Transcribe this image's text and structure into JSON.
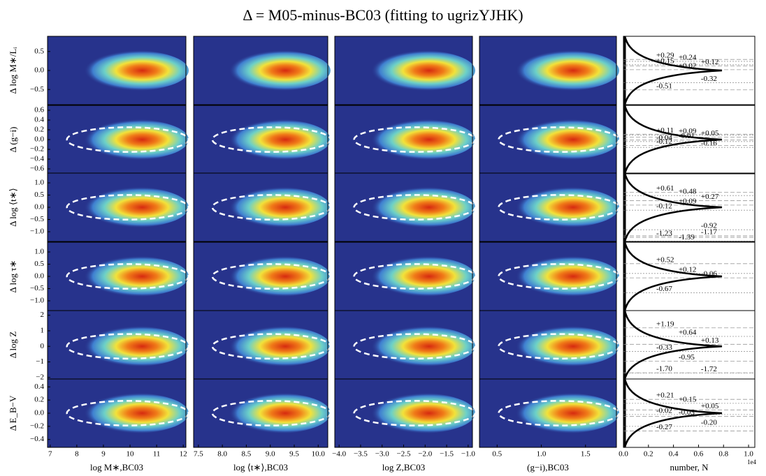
{
  "title": "Δ = M05-minus-BC03 (fitting to ugrizYJHK)",
  "columns": [
    {
      "xlabel": "log M∗,BC03",
      "xlim": [
        6.9,
        12.1
      ],
      "xticks": [
        7,
        8,
        9,
        10,
        11,
        12
      ]
    },
    {
      "xlabel": "log ⟨t∗⟩,BC03",
      "xlim": [
        7.4,
        10.2
      ],
      "xticks": [
        7.5,
        {
          "value": 8,
          "label": "8.0"
        },
        8.5,
        {
          "value": 9,
          "label": "9.0"
        },
        9.5,
        {
          "value": 10,
          "label": "10.0"
        }
      ]
    },
    {
      "xlabel": "log Z,BC03",
      "xlim": [
        -4.1,
        -0.9
      ],
      "xticks": [
        {
          "value": -4,
          "label": "−4.0"
        },
        {
          "value": -3.5,
          "label": "−3.5"
        },
        {
          "value": -3,
          "label": "−3.0"
        },
        {
          "value": -2.5,
          "label": "−2.5"
        },
        {
          "value": -2,
          "label": "−2.0"
        },
        {
          "value": -1.5,
          "label": "−1.5"
        },
        {
          "value": -1,
          "label": "−1.0"
        }
      ]
    },
    {
      "xlabel": "(g−i),BC03",
      "xlim": [
        0.3,
        1.85
      ],
      "xticks": [
        0.5,
        {
          "value": 1,
          "label": "1.0"
        },
        1.5
      ]
    },
    {
      "xlabel": "number, N",
      "xlim": [
        0,
        1.05
      ],
      "exponent": "1e4",
      "xticks": [
        {
          "value": 0,
          "label": "0.0"
        },
        0.2,
        0.4,
        0.6,
        0.8,
        {
          "value": 1,
          "label": "1.0"
        }
      ]
    }
  ],
  "rows": [
    {
      "ylabel": "Δ log M∗/Lᵢ",
      "ylim": [
        -0.9,
        0.9
      ],
      "yticks": [
        {
          "value": -0.5,
          "label": "−0.5"
        },
        {
          "value": 0,
          "label": "0.0"
        },
        0.5
      ],
      "annotations": [
        {
          "value": 0.29,
          "label": "+0.29"
        },
        {
          "value": 0.24,
          "label": "+0.24"
        },
        {
          "value": 0.12,
          "label": "+0.12"
        },
        {
          "value": 0.15,
          "label": "+0.15"
        },
        {
          "value": 0.02,
          "label": "+0.02"
        },
        {
          "value": -0.32,
          "label": "-0.32"
        },
        {
          "value": -0.51,
          "label": "-0.51"
        }
      ]
    },
    {
      "ylabel": "Δ (g−i)",
      "ylim": [
        -0.7,
        0.7
      ],
      "yticks": [
        {
          "value": -0.6,
          "label": "−0.6"
        },
        {
          "value": -0.4,
          "label": "−0.4"
        },
        {
          "value": -0.2,
          "label": "−0.2"
        },
        {
          "value": 0,
          "label": "0.0"
        },
        0.2,
        0.4,
        0.6
      ],
      "annotations": [
        {
          "value": 0.11,
          "label": "+0.11"
        },
        {
          "value": 0.09,
          "label": "+0.09"
        },
        {
          "value": 0.05,
          "label": "+0.05"
        },
        {
          "value": -0.04,
          "label": "-0.04"
        },
        {
          "value": -0.01,
          "label": "-0.01"
        },
        {
          "value": -0.16,
          "label": "-0.16"
        },
        {
          "value": -0.12,
          "label": "-0.12"
        }
      ]
    },
    {
      "ylabel": "Δ log ⟨t∗⟩",
      "ylim": [
        -1.4,
        1.4
      ],
      "yticks": [
        {
          "value": -1,
          "label": "−1.0"
        },
        {
          "value": -0.5,
          "label": "−0.5"
        },
        {
          "value": 0,
          "label": "0.0"
        },
        0.5,
        {
          "value": 1,
          "label": "1.0"
        }
      ],
      "annotations": [
        {
          "value": 0.61,
          "label": "+0.61"
        },
        {
          "value": 0.48,
          "label": "+0.48"
        },
        {
          "value": 0.27,
          "label": "+0.27"
        },
        {
          "value": -0.12,
          "label": "-0.12"
        },
        {
          "value": 0.09,
          "label": "+0.09"
        },
        {
          "value": -0.92,
          "label": "-0.92"
        },
        {
          "value": -1.23,
          "label": "-1.23"
        },
        {
          "value": -1.39,
          "label": "-1.39"
        },
        {
          "value": -1.17,
          "label": "-1.17"
        }
      ]
    },
    {
      "ylabel": "Δ log τ∗",
      "ylim": [
        -1.4,
        1.4
      ],
      "yticks": [
        {
          "value": -1,
          "label": "−1.0"
        },
        {
          "value": -0.5,
          "label": "−0.5"
        },
        {
          "value": 0,
          "label": "0.0"
        },
        0.5,
        {
          "value": 1,
          "label": "1.0"
        }
      ],
      "annotations": [
        {
          "value": 0.52,
          "label": "+0.52"
        },
        {
          "value": 0.12,
          "label": "+0.12"
        },
        {
          "value": -0.06,
          "label": "-0.06"
        },
        {
          "value": -0.67,
          "label": "-0.67"
        }
      ]
    },
    {
      "ylabel": "Δ log Z",
      "ylim": [
        -2.1,
        2.3
      ],
      "yticks": [
        {
          "value": -2,
          "label": "−2"
        },
        {
          "value": -1,
          "label": "−1"
        },
        0,
        1,
        2
      ],
      "annotations": [
        {
          "value": 1.19,
          "label": "+1.19"
        },
        {
          "value": 0.64,
          "label": "+0.64"
        },
        {
          "value": 0.13,
          "label": "+0.13"
        },
        {
          "value": -0.33,
          "label": "-0.33"
        },
        {
          "value": -0.95,
          "label": "-0.95"
        },
        {
          "value": -1.72,
          "label": "-1.72"
        },
        {
          "value": -1.7,
          "label": "-1.70"
        }
      ]
    },
    {
      "ylabel": "Δ E_B−V",
      "ylim": [
        -0.52,
        0.52
      ],
      "yticks": [
        {
          "value": -0.4,
          "label": "−0.4"
        },
        {
          "value": -0.2,
          "label": "−0.2"
        },
        {
          "value": 0,
          "label": "0.0"
        },
        0.2,
        0.4
      ],
      "annotations": [
        {
          "value": 0.21,
          "label": "+0.21"
        },
        {
          "value": 0.15,
          "label": "+0.15"
        },
        {
          "value": 0.05,
          "label": "+0.05"
        },
        {
          "value": -0.02,
          "label": "-0.02"
        },
        {
          "value": -0.05,
          "label": "-0.05"
        },
        {
          "value": -0.2,
          "label": "-0.20"
        },
        {
          "value": -0.27,
          "label": "-0.27"
        }
      ]
    }
  ]
}
